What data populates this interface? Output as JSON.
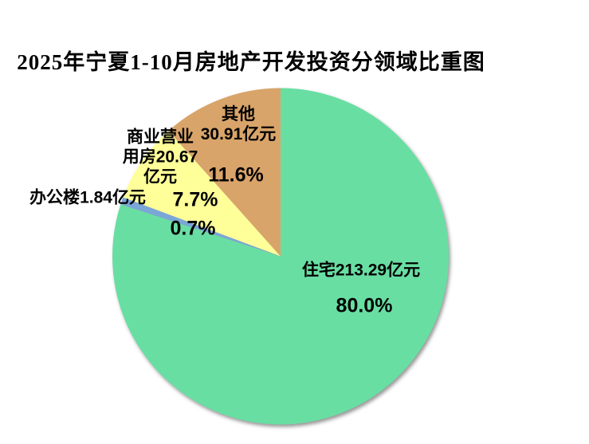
{
  "title": "2025年宁夏1-10月房地产开发投资分领域比重图",
  "chart_data": {
    "type": "pie",
    "title": "2025年宁夏1-10月房地产开发投资分领域比重图",
    "unit": "亿元",
    "start_angle_deg": 0,
    "direction": "clockwise",
    "legend": "none",
    "slices": [
      {
        "id": "residential",
        "name": "住宅",
        "value": 213.29,
        "pct": 80.0,
        "color": "#69DEA3"
      },
      {
        "id": "office",
        "name": "办公楼",
        "value": 1.84,
        "pct": 0.7,
        "color": "#7AA6D8"
      },
      {
        "id": "commercial",
        "name": "商业营业用房",
        "value": 20.67,
        "pct": 7.7,
        "color": "#FFFF99"
      },
      {
        "id": "other",
        "name": "其他",
        "value": 30.91,
        "pct": 11.6,
        "color": "#D9A46A"
      }
    ]
  },
  "labels": {
    "other": {
      "line1": "其他",
      "num": "30.91",
      "unit": "亿元",
      "pct": "11.6%"
    },
    "commercial": {
      "line1": "商业营业",
      "line2_prefix": "用房",
      "num": "20.67",
      "line3_unit": "亿元",
      "pct": "7.7%"
    },
    "office": {
      "prefix": "办公楼",
      "num": "1.84",
      "unit": "亿元",
      "pct": "0.7%"
    },
    "residential": {
      "prefix": "住宅",
      "num": "213.29",
      "unit": "亿元",
      "pct": "80.0%"
    }
  }
}
